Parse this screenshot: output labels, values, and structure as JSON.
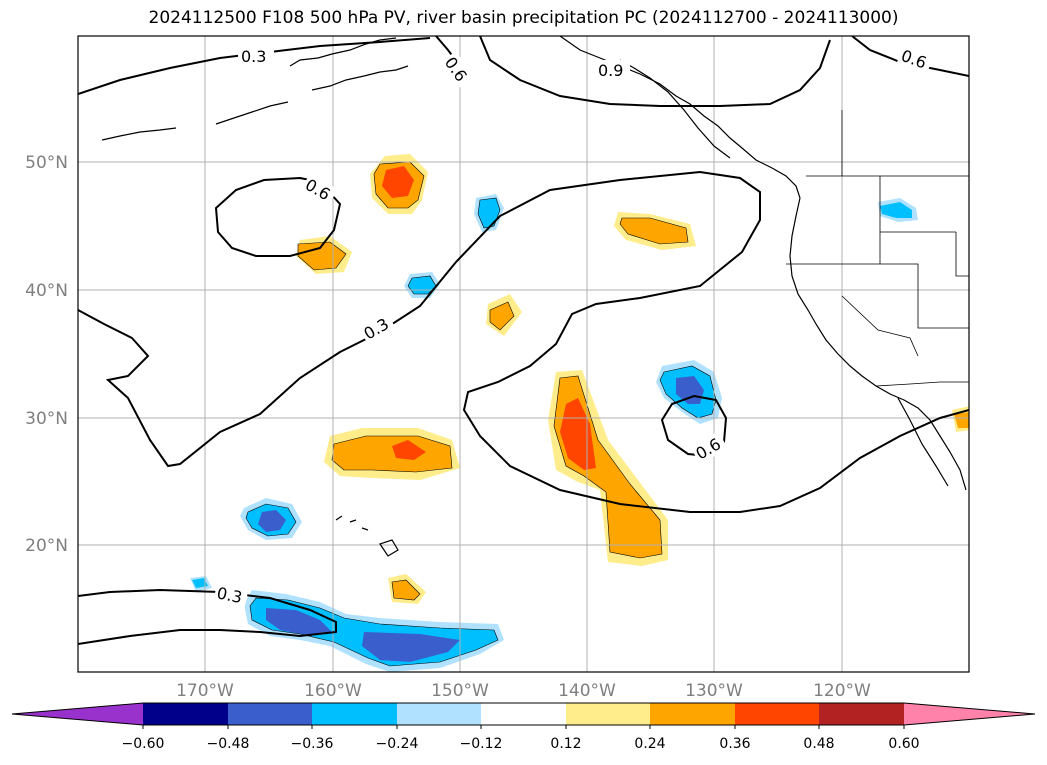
{
  "title": "2024112500 F108 500 hPa PV, river basin precipitation PC (2024112700 - 2024113000)",
  "map": {
    "lat_labels": [
      "50°N",
      "40°N",
      "30°N",
      "20°N"
    ],
    "lon_labels": [
      "170°W",
      "160°W",
      "150°W",
      "140°W",
      "130°W",
      "120°W"
    ],
    "pv_contour_labels": [
      "0.3",
      "0.6",
      "0.9",
      "0.6",
      "0.6",
      "0.3",
      "0.6",
      "0.3"
    ]
  },
  "colorbar": {
    "ticks": [
      "−0.60",
      "−0.48",
      "−0.36",
      "−0.24",
      "−0.12",
      "0.12",
      "0.24",
      "0.36",
      "0.48",
      "0.60"
    ],
    "colors": [
      "#9932cc",
      "#00008b",
      "#3a5fcd",
      "#00bfff",
      "#b0e2ff",
      "#ffffff",
      "#ffec8b",
      "#ffa500",
      "#ff4500",
      "#b22222",
      "#ff82ab"
    ]
  }
}
